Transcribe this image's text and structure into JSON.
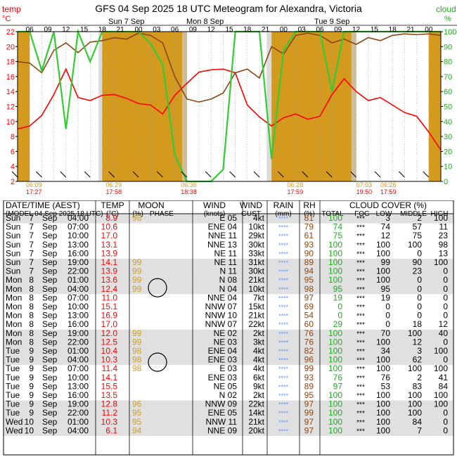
{
  "chart_data": {
    "type": "line",
    "title": "GFS  04 Sep 2025 18 UTC  Meteogram for Alexandra, Victoria",
    "left_axis": {
      "label": "temp",
      "unit": "°C",
      "ylim": [
        2,
        22
      ],
      "ticks": [
        2,
        4,
        6,
        8,
        10,
        12,
        14,
        16,
        18,
        20,
        22
      ]
    },
    "right_axis": {
      "label": "cloud",
      "unit": "%",
      "ylim": [
        0,
        100
      ],
      "ticks": [
        0,
        10,
        20,
        30,
        40,
        50,
        60,
        70,
        80,
        90,
        100
      ]
    },
    "hour_ticks": [
      "06",
      "09",
      "12",
      "15",
      "18",
      "21",
      "00",
      "03",
      "06",
      "09",
      "12",
      "15",
      "18",
      "21",
      "00",
      "03",
      "06",
      "09",
      "12",
      "15",
      "18",
      "21",
      "00",
      "03"
    ],
    "day_labels": [
      "Sun 7 Sep",
      "Mon 8 Sep",
      "Tue 9 Sep"
    ],
    "sun_times": [
      {
        "rise": "06:09",
        "set": "17:27"
      },
      {
        "rise": "06:29",
        "set": "17:58"
      },
      {
        "rise": "06:36",
        "set": "18:38"
      },
      {
        "rise": "06:28",
        "set": "17:59"
      },
      {
        "rise": "07:03",
        "set": "19:50"
      },
      {
        "rise": "06:26",
        "set": "17:59"
      }
    ],
    "series": [
      {
        "name": "temperature",
        "color": "#ff0000",
        "values": [
          9.0,
          9.4,
          10.8,
          13.6,
          17.0,
          13.2,
          12.8,
          13.5,
          13.6,
          13.1,
          12.4,
          12.2,
          11.0,
          13.5,
          15.1,
          16.6,
          16.9,
          17.0,
          16.5,
          12.2,
          10.6,
          9.4,
          10.5,
          11.0,
          10.3,
          10.7,
          13.6,
          15.7,
          14.0,
          12.8,
          13.2,
          12.2,
          11.2,
          10.7,
          8.6,
          6.2
        ]
      },
      {
        "name": "dew point",
        "color": "#8b4513",
        "values": [
          18.0,
          17.8,
          16.5,
          19.5,
          20.5,
          19.2,
          20.6,
          20.8,
          21.2,
          21.0,
          21.8,
          21.5,
          20.5,
          16.0,
          13.0,
          12.6,
          13.0,
          13.8,
          16.5,
          17.0,
          15.8,
          20.0,
          19.0,
          21.5,
          21.8,
          21.5,
          20.5,
          21.0,
          20.3,
          21.2,
          20.8,
          21.5,
          21.7,
          21.6,
          21.7,
          21.5
        ]
      },
      {
        "name": "cloud cover",
        "color": "#33cc33",
        "values": [
          100,
          100,
          74,
          100,
          35,
          100,
          80,
          100,
          100,
          100,
          100,
          92,
          78,
          18,
          0,
          0,
          0,
          8,
          100,
          100,
          100,
          15,
          88,
          100,
          100,
          100,
          60,
          100,
          100,
          100,
          100,
          100,
          100,
          100,
          100,
          100
        ]
      }
    ]
  },
  "table": {
    "headers": {
      "datetime": "DATE/TIME (AEST)",
      "model": "(MODEL 04 Sep 2025 18 UTC)",
      "temp": "TEMP",
      "temp_unit": "(°C)",
      "moon": "MOON",
      "moon_pct": "(%)",
      "moon_phase": "PHASE",
      "wind": "WIND",
      "wind_unit": "(knots)",
      "wind2": "WIND",
      "gust": "GUST",
      "rain": "RAIN",
      "rain_unit": "(mm)",
      "rh": "RH",
      "rh_unit": "(%)",
      "cloud": "CLOUD COVER (%)",
      "total": "TOTAL",
      "fog": "FOG",
      "low": "LOW",
      "middle": "MIDDLE",
      "high": "HIGH"
    },
    "rows": [
      {
        "d": "Sun",
        "n": "7",
        "m": "Sep",
        "t": "04:00",
        "temp": "8.9",
        "moon": "98",
        "wind": "E 05",
        "gust": "4kt",
        "rain": "****",
        "rh": "81",
        "tot": "100",
        "fog": "***",
        "low": "3",
        "mid": "2",
        "high": "100"
      },
      {
        "d": "Sun",
        "n": "7",
        "m": "Sep",
        "t": "07:00",
        "temp": "10.6",
        "moon": "",
        "wind": "ENE 04",
        "gust": "10kt",
        "rain": "****",
        "rh": "79",
        "tot": "74",
        "fog": "***",
        "low": "74",
        "mid": "57",
        "high": "11"
      },
      {
        "d": "Sun",
        "n": "7",
        "m": "Sep",
        "t": "10:00",
        "temp": "17.0",
        "moon": "",
        "wind": "NNE 11",
        "gust": "29kt",
        "rain": "****",
        "rh": "61",
        "tot": "75",
        "fog": "***",
        "low": "12",
        "mid": "75",
        "high": "23"
      },
      {
        "d": "Sun",
        "n": "7",
        "m": "Sep",
        "t": "13:00",
        "temp": "13.1",
        "moon": "",
        "wind": "NNE 13",
        "gust": "30kt",
        "rain": "****",
        "rh": "93",
        "tot": "100",
        "fog": "***",
        "low": "100",
        "mid": "100",
        "high": "98"
      },
      {
        "d": "Sun",
        "n": "7",
        "m": "Sep",
        "t": "16:00",
        "temp": "13.9",
        "moon": "",
        "wind": "NE 11",
        "gust": "33kt",
        "rain": "****",
        "rh": "90",
        "tot": "100",
        "fog": "***",
        "low": "100",
        "mid": "0",
        "high": "13"
      },
      {
        "d": "Sun",
        "n": "7",
        "m": "Sep",
        "t": "19:00",
        "temp": "14.1",
        "moon": "99",
        "wind": "NE 11",
        "gust": "31kt",
        "rain": "****",
        "rh": "89",
        "tot": "100",
        "fog": "***",
        "low": "99",
        "mid": "90",
        "high": "100"
      },
      {
        "d": "Sun",
        "n": "7",
        "m": "Sep",
        "t": "22:00",
        "temp": "13.9",
        "moon": "99",
        "wind": "N 11",
        "gust": "30kt",
        "rain": "****",
        "rh": "94",
        "tot": "100",
        "fog": "***",
        "low": "100",
        "mid": "23",
        "high": "0"
      },
      {
        "d": "Mon",
        "n": "8",
        "m": "Sep",
        "t": "01:00",
        "temp": "13.6",
        "moon": "99",
        "wind": "N 08",
        "gust": "21kt",
        "rain": "****",
        "rh": "95",
        "tot": "100",
        "fog": "***",
        "low": "100",
        "mid": "0",
        "high": "0"
      },
      {
        "d": "Mon",
        "n": "8",
        "m": "Sep",
        "t": "04:00",
        "temp": "12.4",
        "moon": "99",
        "wind": "N 04",
        "gust": "10kt",
        "rain": "****",
        "rh": "98",
        "tot": "95",
        "fog": "***",
        "low": "95",
        "mid": "0",
        "high": "0"
      },
      {
        "d": "Mon",
        "n": "8",
        "m": "Sep",
        "t": "07:00",
        "temp": "11.0",
        "moon": "",
        "wind": "NNE 04",
        "gust": "7kt",
        "rain": "****",
        "rh": "97",
        "tot": "19",
        "fog": "***",
        "low": "19",
        "mid": "0",
        "high": "0"
      },
      {
        "d": "Mon",
        "n": "8",
        "m": "Sep",
        "t": "10:00",
        "temp": "15.1",
        "moon": "",
        "wind": "NNW 07",
        "gust": "15kt",
        "rain": "****",
        "rh": "69",
        "tot": "0",
        "fog": "***",
        "low": "0",
        "mid": "0",
        "high": "0"
      },
      {
        "d": "Mon",
        "n": "8",
        "m": "Sep",
        "t": "13:00",
        "temp": "16.9",
        "moon": "",
        "wind": "NNW 10",
        "gust": "21kt",
        "rain": "****",
        "rh": "54",
        "tot": "0",
        "fog": "***",
        "low": "0",
        "mid": "0",
        "high": "0"
      },
      {
        "d": "Mon",
        "n": "8",
        "m": "Sep",
        "t": "16:00",
        "temp": "17.0",
        "moon": "",
        "wind": "NNW 07",
        "gust": "22kt",
        "rain": "****",
        "rh": "60",
        "tot": "29",
        "fog": "***",
        "low": "0",
        "mid": "18",
        "high": "12"
      },
      {
        "d": "Mon",
        "n": "8",
        "m": "Sep",
        "t": "19:00",
        "temp": "12.0",
        "moon": "99",
        "wind": "NE 02",
        "gust": "2kt",
        "rain": "****",
        "rh": "76",
        "tot": "100",
        "fog": "***",
        "low": "70",
        "mid": "100",
        "high": "40"
      },
      {
        "d": "Mon",
        "n": "8",
        "m": "Sep",
        "t": "22:00",
        "temp": "12.5",
        "moon": "99",
        "wind": "NE 03",
        "gust": "3kt",
        "rain": "****",
        "rh": "76",
        "tot": "100",
        "fog": "***",
        "low": "100",
        "mid": "12",
        "high": "0"
      },
      {
        "d": "Tue",
        "n": "9",
        "m": "Sep",
        "t": "01:00",
        "temp": "10.4",
        "moon": "98",
        "wind": "ENE 04",
        "gust": "4kt",
        "rain": "****",
        "rh": "82",
        "tot": "100",
        "fog": "***",
        "low": "34",
        "mid": "3",
        "high": "100"
      },
      {
        "d": "Tue",
        "n": "9",
        "m": "Sep",
        "t": "04:00",
        "temp": "10.3",
        "moon": "98",
        "wind": "ENE 03",
        "gust": "4kt",
        "rain": "****",
        "rh": "96",
        "tot": "100",
        "fog": "***",
        "low": "100",
        "mid": "62",
        "high": "0"
      },
      {
        "d": "Tue",
        "n": "9",
        "m": "Sep",
        "t": "07:00",
        "temp": "11.4",
        "moon": "98",
        "wind": "E 03",
        "gust": "4kt",
        "rain": "****",
        "rh": "99",
        "tot": "100",
        "fog": "***",
        "low": "100",
        "mid": "100",
        "high": "100"
      },
      {
        "d": "Tue",
        "n": "9",
        "m": "Sep",
        "t": "10:00",
        "temp": "14.1",
        "moon": "",
        "wind": "ENE 03",
        "gust": "6kt",
        "rain": "****",
        "rh": "93",
        "tot": "76",
        "fog": "***",
        "low": "76",
        "mid": "2",
        "high": "41"
      },
      {
        "d": "Tue",
        "n": "9",
        "m": "Sep",
        "t": "13:00",
        "temp": "15.5",
        "moon": "",
        "wind": "NE 05",
        "gust": "9kt",
        "rain": "****",
        "rh": "89",
        "tot": "97",
        "fog": "***",
        "low": "53",
        "mid": "83",
        "high": "84"
      },
      {
        "d": "Tue",
        "n": "9",
        "m": "Sep",
        "t": "16:00",
        "temp": "13.5",
        "moon": "",
        "wind": "N 02",
        "gust": "2kt",
        "rain": "****",
        "rh": "95",
        "tot": "100",
        "fog": "***",
        "low": "100",
        "mid": "100",
        "high": "100"
      },
      {
        "d": "Tue",
        "n": "9",
        "m": "Sep",
        "t": "19:00",
        "temp": "12.8",
        "moon": "96",
        "wind": "NNW 09",
        "gust": "22kt",
        "rain": "****",
        "rh": "97",
        "tot": "100",
        "fog": "***",
        "low": "100",
        "mid": "100",
        "high": "100"
      },
      {
        "d": "Tue",
        "n": "9",
        "m": "Sep",
        "t": "22:00",
        "temp": "11.2",
        "moon": "95",
        "wind": "ENE 05",
        "gust": "14kt",
        "rain": "****",
        "rh": "99",
        "tot": "100",
        "fog": "***",
        "low": "100",
        "mid": "100",
        "high": "0"
      },
      {
        "d": "Wed",
        "n": "10",
        "m": "Sep",
        "t": "01:00",
        "temp": "10.3",
        "moon": "95",
        "wind": "NNW 11",
        "gust": "21kt",
        "rain": "****",
        "rh": "97",
        "tot": "100",
        "fog": "***",
        "low": "100",
        "mid": "84",
        "high": "0"
      },
      {
        "d": "Wed",
        "n": "10",
        "m": "Sep",
        "t": "04:00",
        "temp": "6.1",
        "moon": "94",
        "wind": "NNE 09",
        "gust": "20kt",
        "rain": "****",
        "rh": "97",
        "tot": "100",
        "fog": "***",
        "low": "100",
        "mid": "7",
        "high": "0"
      }
    ],
    "night_rows": [
      0,
      5,
      6,
      7,
      8,
      13,
      14,
      15,
      16,
      21,
      22,
      23,
      24
    ],
    "colors": {
      "temp": "#ff0000",
      "moon": "#d4a017",
      "rain": "#6699ff",
      "rh": "#8b4513",
      "total": "#22aa22",
      "night": "#e0e0e0"
    }
  }
}
